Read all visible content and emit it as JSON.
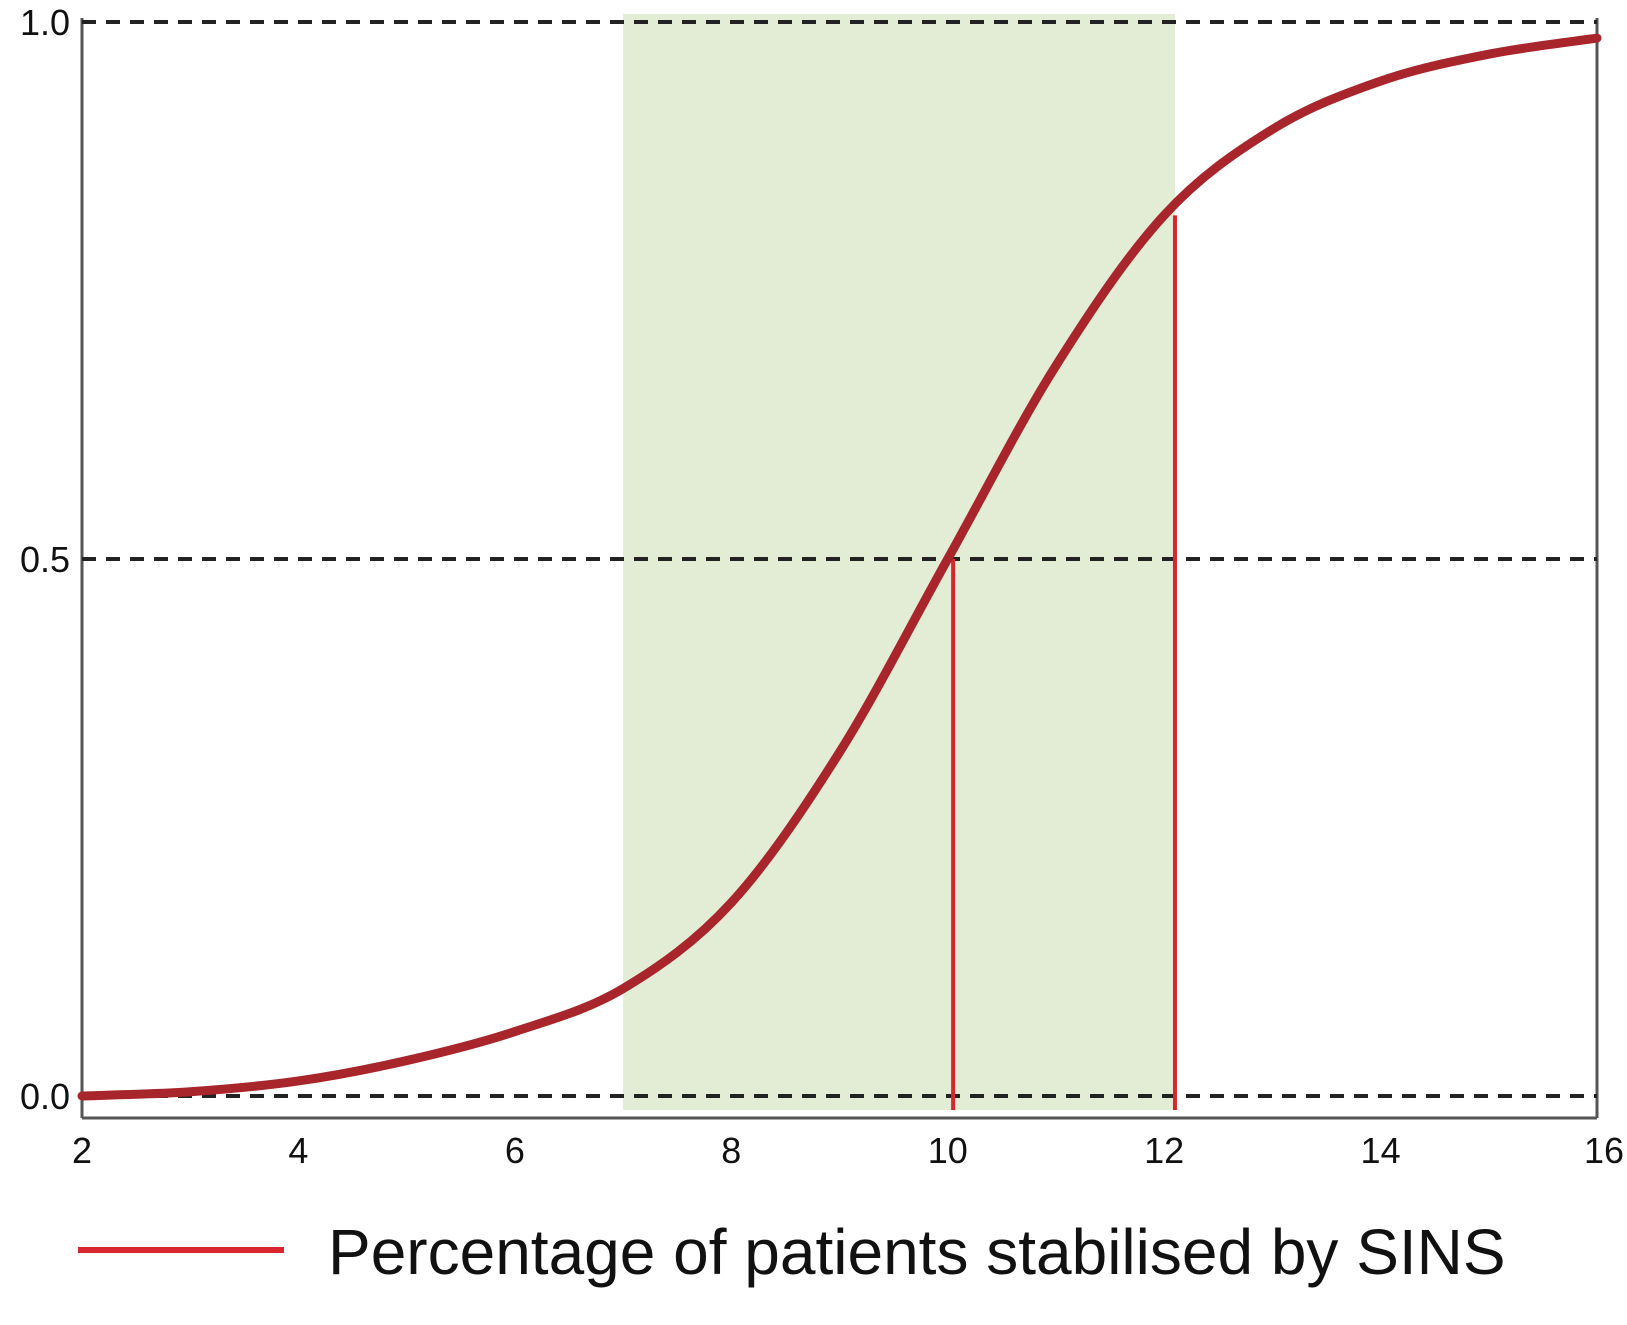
{
  "chart_data": {
    "type": "line",
    "xlim": [
      2,
      16
    ],
    "ylim": [
      0.0,
      1.0
    ],
    "x_ticks": [
      "2",
      "4",
      "6",
      "8",
      "10",
      "12",
      "14",
      "16"
    ],
    "y_ticks": [
      "0.0",
      "0.5",
      "1.0"
    ],
    "reference_lines_y": [
      0.0,
      0.5,
      1.0
    ],
    "shaded_range_x": [
      7.0,
      12.1
    ],
    "marker_lines": [
      {
        "x": 10.05,
        "y": 0.5
      },
      {
        "x": 12.1,
        "y": 0.82
      }
    ],
    "series": [
      {
        "name": "Percentage of patients stabilised by SINS",
        "x": [
          2,
          3,
          4,
          5,
          6,
          7,
          8,
          9,
          10,
          11,
          12,
          13,
          14,
          15,
          16
        ],
        "y": [
          0.0,
          0.004,
          0.014,
          0.033,
          0.06,
          0.1,
          0.18,
          0.32,
          0.5,
          0.68,
          0.82,
          0.9,
          0.945,
          0.97,
          0.985
        ]
      }
    ],
    "grid": false,
    "legend_position": "bottom"
  },
  "colors": {
    "curve": "#a8262b",
    "marker_line": "#d7262e",
    "shade": "#e3edd6",
    "dash": "#222222",
    "axis": "#555555",
    "legend_line": "#d7262e"
  }
}
